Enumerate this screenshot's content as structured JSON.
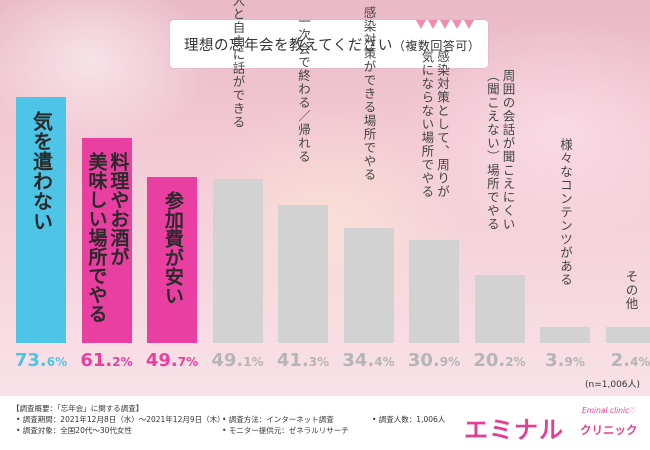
{
  "title": {
    "main": "理想の忘年会を教えてください",
    "suffix": "（複数回答可）"
  },
  "chart_data": {
    "type": "bar",
    "categories": [
      "気を遣わない",
      "料理やお酒が美味しい場所でやる",
      "参加費が安い",
      "話したい人と自由に話ができる",
      "一次会で終わる／帰れる",
      "感染対策ができる場所でやる",
      "感染対策として、周りが気にならない場所でやる",
      "周囲の会話が聞こえにくい（聞こえない）場所でやる",
      "様々なコンテンツがある",
      "その他"
    ],
    "display_labels": [
      "気を遣わない",
      "料理やお酒が\n美味しい場所でやる",
      "参加費が安い",
      "話したい人と自由に話ができる",
      "一次会で終わる／帰れる",
      "感染対策ができる場所でやる",
      "感染対策として、周りが\n気にならない場所でやる",
      "周囲の会話が聞こえにくい\n（聞こえない）場所でやる",
      "様々なコンテンツがある",
      "その他"
    ],
    "values": [
      73.6,
      61.2,
      49.7,
      49.1,
      41.3,
      34.4,
      30.9,
      20.2,
      3.9,
      2.4
    ],
    "value_labels": [
      {
        "int": "73.",
        "dec": "6%"
      },
      {
        "int": "61.",
        "dec": "2%"
      },
      {
        "int": "49.",
        "dec": "7%"
      },
      {
        "int": "49.",
        "dec": "1%"
      },
      {
        "int": "41.",
        "dec": "3%"
      },
      {
        "int": "34.",
        "dec": "4%"
      },
      {
        "int": "30.",
        "dec": "9%"
      },
      {
        "int": "20.",
        "dec": "2%"
      },
      {
        "int": "3.",
        "dec": "9%"
      },
      {
        "int": "2.",
        "dec": "4%"
      }
    ],
    "colors": [
      "#4ec4e6",
      "#e83fa1",
      "#e83fa1",
      "#d2d2d2",
      "#d2d2d2",
      "#d2d2d2",
      "#d2d2d2",
      "#d2d2d2",
      "#d2d2d2",
      "#d2d2d2"
    ],
    "pct_colors": [
      "#4ec4e6",
      "#e83fa1",
      "#e83fa1",
      "#b5b5b5",
      "#b5b5b5",
      "#b5b5b5",
      "#b5b5b5",
      "#b5b5b5",
      "#b5b5b5",
      "#b5b5b5"
    ],
    "ylim": [
      0,
      73.6
    ],
    "grid": false,
    "legend": "none"
  },
  "note": "(n=1,006人)",
  "survey": {
    "heading": "【調査概要：「忘年会」に関する調査】",
    "period": "• 調査期間：2021年12月8日（水）〜2021年12月9日（木）",
    "method": "• 調査方法：インターネット調査",
    "count": "• 調査人数：1,006人",
    "target": "• 調査対象：全国20代〜30代女性",
    "provider": "• モニター提供元：ゼネラルリサーチ"
  },
  "logo": {
    "main": "エミナル",
    "sub": "クリニック",
    "en": "Eminal clinic♡"
  }
}
